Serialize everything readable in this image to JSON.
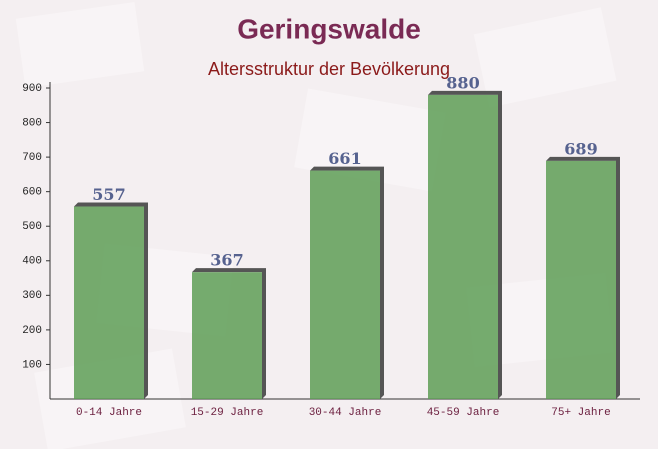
{
  "chart_data": {
    "type": "bar",
    "title": "Geringswalde",
    "subtitle": "Altersstruktur der Bevölkerung",
    "categories": [
      "0-14 Jahre",
      "15-29 Jahre",
      "30-44 Jahre",
      "45-59 Jahre",
      "75+ Jahre"
    ],
    "values": [
      557,
      367,
      661,
      880,
      689
    ],
    "color": "#5e9e56",
    "ylim": [
      0,
      900
    ],
    "yticks": [
      100,
      200,
      300,
      400,
      500,
      600,
      700,
      800,
      900
    ],
    "grid": false
  }
}
